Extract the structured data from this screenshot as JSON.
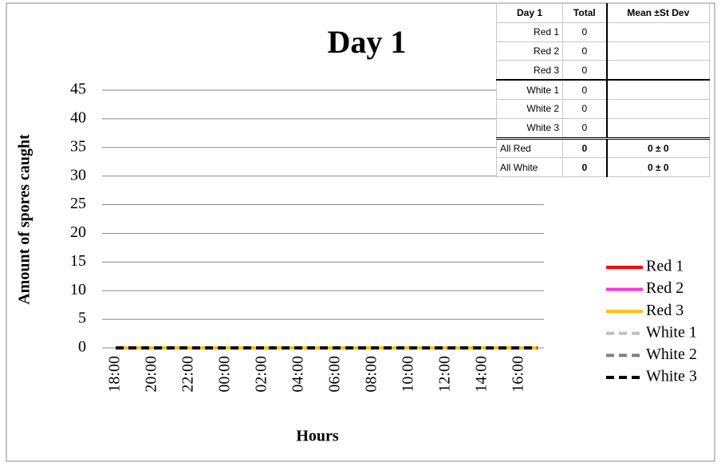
{
  "chart_data": {
    "type": "line",
    "title": "Day 1",
    "x_label": "Hours",
    "y_label": "Amount of spores caught",
    "categories": [
      "18:00",
      null,
      "20:00",
      null,
      "22:00",
      null,
      "00:00",
      null,
      "02:00",
      null,
      "04:00",
      null,
      "06:00",
      null,
      "08:00",
      null,
      "10:00",
      null,
      "12:00",
      null,
      "14:00",
      null,
      "16:00",
      null
    ],
    "series": [
      {
        "name": "Red 1",
        "color": "#ff0000",
        "dash": false,
        "values": [
          0,
          0,
          0,
          0,
          0,
          0,
          0,
          0,
          0,
          0,
          0,
          0,
          0,
          0,
          0,
          0,
          0,
          0,
          0,
          0,
          0,
          0,
          0,
          0
        ]
      },
      {
        "name": "Red 2",
        "color": "#ff33dd",
        "dash": false,
        "values": [
          0,
          0,
          0,
          0,
          0,
          0,
          0,
          0,
          0,
          0,
          0,
          0,
          0,
          0,
          0,
          0,
          0,
          0,
          0,
          0,
          0,
          0,
          0,
          0
        ]
      },
      {
        "name": "Red 3",
        "color": "#ffc000",
        "dash": false,
        "values": [
          0,
          0,
          0,
          0,
          0,
          0,
          0,
          0,
          0,
          0,
          0,
          0,
          0,
          0,
          0,
          0,
          0,
          0,
          0,
          0,
          0,
          0,
          0,
          0
        ]
      },
      {
        "name": "White 1",
        "color": "#bfbfbf",
        "dash": true,
        "values": [
          0,
          0,
          0,
          0,
          0,
          0,
          0,
          0,
          0,
          0,
          0,
          0,
          0,
          0,
          0,
          0,
          0,
          0,
          0,
          0,
          0,
          0,
          0,
          0
        ]
      },
      {
        "name": "White 2",
        "color": "#808080",
        "dash": true,
        "values": [
          0,
          0,
          0,
          0,
          0,
          0,
          0,
          0,
          0,
          0,
          0,
          0,
          0,
          0,
          0,
          0,
          0,
          0,
          0,
          0,
          0,
          0,
          0,
          0
        ]
      },
      {
        "name": "White 3",
        "color": "#000000",
        "dash": true,
        "values": [
          0,
          0,
          0,
          0,
          0,
          0,
          0,
          0,
          0,
          0,
          0,
          0,
          0,
          0,
          0,
          0,
          0,
          0,
          0,
          0,
          0,
          0,
          0,
          0
        ]
      }
    ],
    "ylim": [
      0,
      45
    ],
    "yticks": [
      0,
      5,
      10,
      15,
      20,
      25,
      30,
      35,
      40,
      45
    ],
    "grid": true,
    "legend": "right"
  },
  "table": {
    "header": [
      "Day 1",
      "Total",
      "Mean ±St Dev"
    ],
    "rows": [
      [
        "Red 1",
        0,
        ""
      ],
      [
        "Red 2",
        0,
        ""
      ],
      [
        "Red 3",
        0,
        ""
      ],
      [
        "White 1",
        0,
        ""
      ],
      [
        "White 2",
        0,
        ""
      ],
      [
        "White 3",
        0,
        ""
      ],
      [
        "All Red",
        0,
        "0 ± 0"
      ],
      [
        "All White",
        0,
        "0 ± 0"
      ]
    ]
  }
}
